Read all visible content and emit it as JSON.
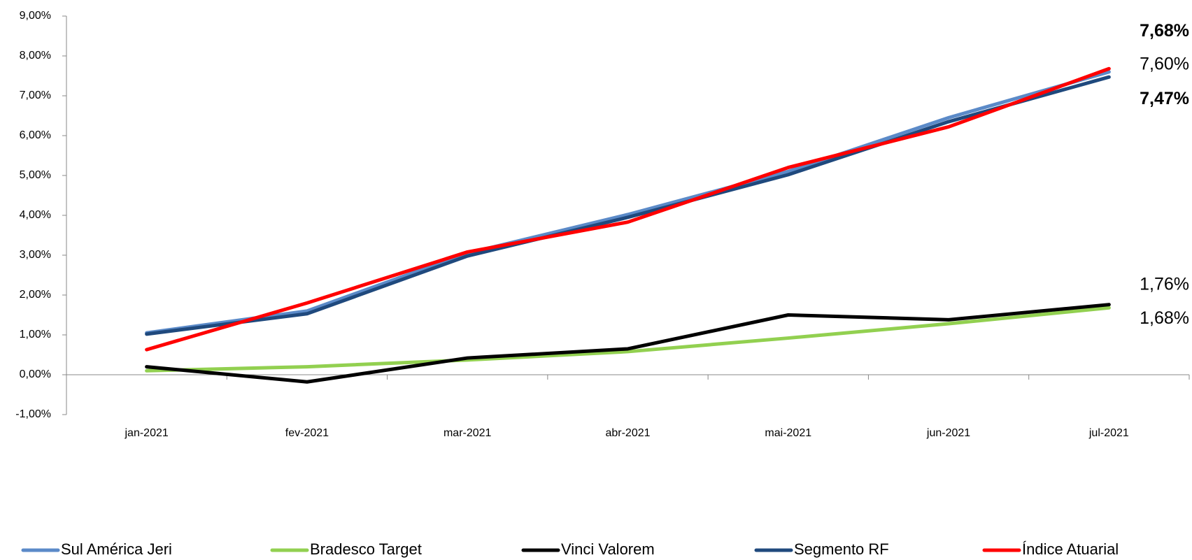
{
  "chart_data": {
    "type": "line",
    "categories": [
      "jan-2021",
      "fev-2021",
      "mar-2021",
      "abr-2021",
      "mai-2021",
      "jun-2021",
      "jul-2021"
    ],
    "ylim": [
      -1,
      9
    ],
    "yticks": [
      {
        "value": -1,
        "label": "-1,00%"
      },
      {
        "value": 0,
        "label": "0,00%"
      },
      {
        "value": 1,
        "label": "1,00%"
      },
      {
        "value": 2,
        "label": "2,00%"
      },
      {
        "value": 3,
        "label": "3,00%"
      },
      {
        "value": 4,
        "label": "4,00%"
      },
      {
        "value": 5,
        "label": "5,00%"
      },
      {
        "value": 6,
        "label": "6,00%"
      },
      {
        "value": 7,
        "label": "7,00%"
      },
      {
        "value": 8,
        "label": "8,00%"
      },
      {
        "value": 9,
        "label": "9,00%"
      }
    ],
    "series": [
      {
        "name": "Sul América Jeri",
        "color": "#5b8ac8",
        "values": [
          1.05,
          1.6,
          3.05,
          4.02,
          5.1,
          6.45,
          7.6
        ],
        "value_labels": [
          null,
          null,
          null,
          null,
          null,
          null,
          "7,60%"
        ]
      },
      {
        "name": "Bradesco Target",
        "color": "#92d050",
        "values": [
          0.1,
          0.2,
          0.37,
          0.58,
          0.92,
          1.28,
          1.68
        ],
        "value_labels": [
          null,
          null,
          null,
          null,
          null,
          null,
          "1,68%"
        ]
      },
      {
        "name": "Vinci Valorem",
        "color": "#000000",
        "values": [
          0.2,
          -0.18,
          0.42,
          0.65,
          1.5,
          1.38,
          1.76
        ],
        "value_labels": [
          null,
          null,
          null,
          null,
          null,
          null,
          "1,76%"
        ]
      },
      {
        "name": "Segmento RF",
        "color": "#1f497d",
        "values": [
          1.02,
          1.53,
          2.98,
          3.95,
          5.02,
          6.35,
          7.47
        ],
        "value_labels": [
          null,
          null,
          null,
          null,
          null,
          null,
          "7,47%"
        ]
      },
      {
        "name": "Índice Atuarial",
        "color": "#ff0000",
        "values": [
          0.63,
          1.8,
          3.08,
          3.83,
          5.2,
          6.22,
          7.68
        ],
        "value_labels": [
          null,
          null,
          null,
          null,
          null,
          null,
          "7,68%"
        ]
      }
    ]
  }
}
